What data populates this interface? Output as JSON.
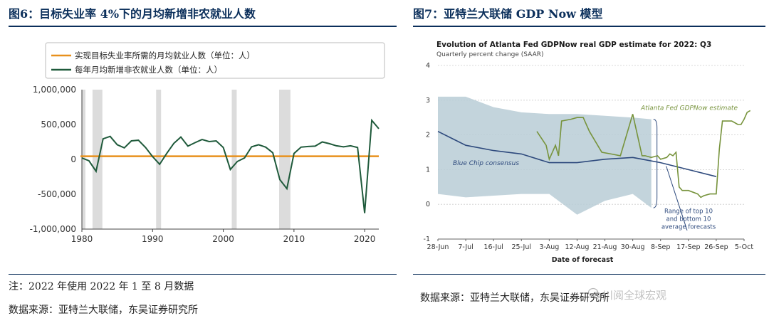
{
  "left": {
    "title": "图6：目标失业率 4%下的月均新增非农就业人数",
    "note1": "注：2022 年使用 2022 年 1 至 8 月数据",
    "note2": "数据来源：亚特兰大联储，东吴证券研究所"
  },
  "right": {
    "title": "图7：亚特兰大联储 GDP Now 模型",
    "source": "数据来源：亚特兰大联储，东吴证券研究所",
    "watermark": "川阅全球宏观"
  },
  "chart_data": [
    {
      "type": "line",
      "legend": [
        "实现目标失业率所需的月均就业人数（单位：人）",
        "每年月均新增非农就业人数（单位：人）"
      ],
      "legend_position": "top-left",
      "colors": {
        "target": "#e8901c",
        "actual": "#1f5a3b",
        "recession": "#dcdcdc"
      },
      "x_ticks": [
        "1980",
        "1990",
        "2000",
        "2010",
        "2020"
      ],
      "y_ticks": [
        "1,000,000",
        "500,000",
        "0",
        "-500,000",
        "-1,000,000"
      ],
      "ylim": [
        -1000000,
        1000000
      ],
      "xlim": [
        1980,
        2022
      ],
      "recession_bands": [
        [
          1980.0,
          1980.5
        ],
        [
          1981.5,
          1982.9
        ],
        [
          1990.5,
          1991.2
        ],
        [
          2001.2,
          2001.9
        ],
        [
          2007.9,
          2009.5
        ]
      ],
      "series": [
        {
          "name": "实现目标失业率所需的月均就业人数（单位：人）",
          "x": [
            1979.8,
            2022
          ],
          "y": [
            45000,
            45000
          ]
        },
        {
          "name": "每年月均新增非农就业人数（单位：人）",
          "x": [
            1980,
            1981,
            1982,
            1983,
            1984,
            1985,
            1986,
            1987,
            1988,
            1989,
            1990,
            1991,
            1992,
            1993,
            1994,
            1995,
            1996,
            1997,
            1998,
            1999,
            2000,
            2001,
            2002,
            2003,
            2004,
            2005,
            2006,
            2007,
            2008,
            2009,
            2010,
            2011,
            2012,
            2013,
            2014,
            2015,
            2016,
            2017,
            2018,
            2019,
            2020,
            2021,
            2022
          ],
          "y": [
            20000,
            -20000,
            -170000,
            295000,
            330000,
            210000,
            165000,
            265000,
            275000,
            170000,
            40000,
            -70000,
            85000,
            230000,
            320000,
            190000,
            240000,
            285000,
            255000,
            265000,
            170000,
            -145000,
            -30000,
            20000,
            180000,
            210000,
            175000,
            95000,
            -290000,
            -420000,
            85000,
            175000,
            185000,
            190000,
            250000,
            225000,
            195000,
            180000,
            195000,
            170000,
            -770000,
            560000,
            440000
          ]
        }
      ]
    },
    {
      "type": "line",
      "title": "Evolution of Atlanta Fed GDPNow real GDP estimate for 2022: Q3",
      "subtitle": "Quarterly percent change (SAAR)",
      "xlabel": "Date of forecast",
      "x_ticks": [
        "28-Jun",
        "7-Jul",
        "16-Jul",
        "25-Jul",
        "3-Aug",
        "12-Aug",
        "21-Aug",
        "30-Aug",
        "8-Sep",
        "17-Sep",
        "26-Sep",
        "5-Oct"
      ],
      "y_ticks": [
        "4",
        "3",
        "2",
        "1",
        "0",
        "-1"
      ],
      "ylim": [
        -1,
        4
      ],
      "annotations": {
        "gdpnow": "Atlanta Fed GDPNow estimate",
        "bluechip": "Blue Chip consensus",
        "range": [
          "Range of top 10",
          "and bottom 10",
          "average forecasts"
        ]
      },
      "colors": {
        "gdpnow": "#77933c",
        "bluechip": "#2e4a7d",
        "band": "#b9cdd6"
      },
      "range_band": {
        "x": [
          0,
          9,
          18,
          27,
          36,
          45,
          54,
          63,
          69
        ],
        "upper": [
          3.1,
          3.1,
          2.8,
          2.65,
          2.6,
          2.6,
          2.55,
          2.5,
          2.45
        ],
        "lower": [
          0.3,
          0.2,
          0.25,
          0.3,
          0.3,
          -0.3,
          0.1,
          0.3,
          -0.1
        ]
      },
      "series": [
        {
          "name": "Blue Chip consensus",
          "x": [
            0,
            9,
            18,
            27,
            36,
            45,
            54,
            63,
            72,
            81,
            90
          ],
          "y": [
            2.1,
            1.7,
            1.55,
            1.45,
            1.2,
            1.2,
            1.3,
            1.35,
            1.2,
            1.0,
            0.8
          ]
        },
        {
          "name": "Atlanta Fed GDPNow estimate",
          "x": [
            32,
            35,
            36,
            38,
            39,
            40,
            43,
            45,
            47,
            49,
            53,
            56,
            59,
            62,
            63,
            66,
            67,
            69,
            71,
            72,
            74,
            75,
            76,
            77,
            78,
            79,
            81,
            84,
            85,
            86,
            88,
            90,
            91,
            92,
            95,
            96,
            97,
            98,
            99,
            100,
            101
          ],
          "y": [
            2.1,
            1.7,
            1.3,
            1.7,
            1.4,
            2.4,
            2.45,
            2.5,
            2.5,
            2.1,
            1.5,
            1.45,
            1.4,
            2.3,
            2.6,
            1.4,
            1.4,
            1.35,
            1.4,
            1.3,
            1.35,
            1.45,
            1.4,
            1.5,
            0.5,
            0.4,
            0.4,
            0.3,
            0.2,
            0.25,
            0.3,
            0.3,
            1.6,
            2.4,
            2.4,
            2.35,
            2.3,
            2.3,
            2.45,
            2.65,
            2.7
          ]
        }
      ]
    }
  ]
}
